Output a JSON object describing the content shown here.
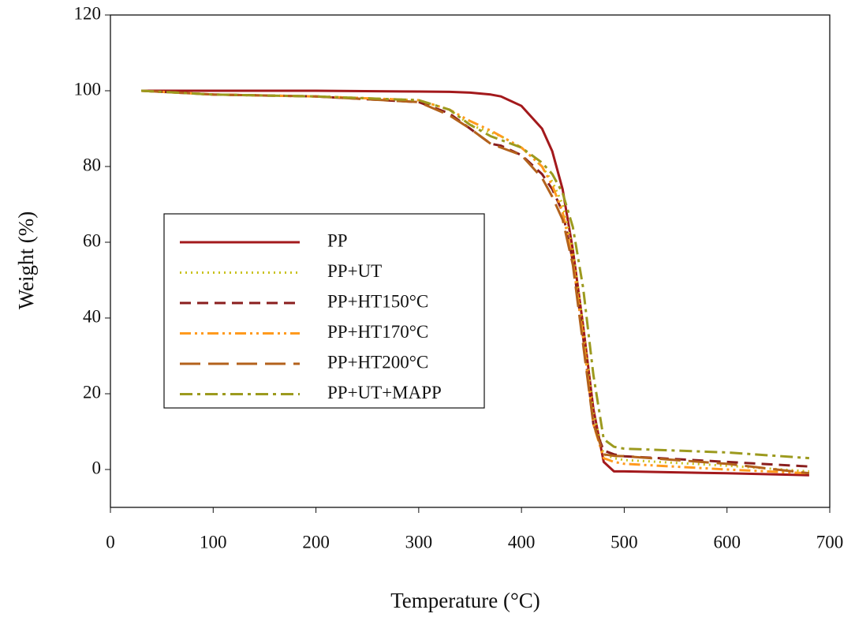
{
  "chart_data": {
    "type": "line",
    "xlabel": "Temperature (°C)",
    "ylabel": "Weight (%)",
    "x": [
      30,
      100,
      200,
      300,
      330,
      350,
      370,
      380,
      400,
      420,
      430,
      440,
      450,
      460,
      470,
      480,
      490,
      500,
      600,
      680
    ],
    "series": [
      {
        "name": "PP",
        "color": "#a3191c",
        "dash": "solid",
        "values": [
          100,
          100,
          100,
          99.8,
          99.7,
          99.5,
          99,
          98.5,
          96,
          90,
          84,
          74,
          58,
          38,
          16,
          2,
          -0.5,
          -0.5,
          -1,
          -1.5
        ]
      },
      {
        "name": "PP+UT",
        "color": "#c9c21e",
        "dash": "dotted",
        "values": [
          100,
          99,
          98.5,
          97.5,
          95,
          91,
          89,
          88,
          85,
          80,
          76,
          70,
          58,
          38,
          15,
          4,
          3,
          2.5,
          1,
          -0.5
        ]
      },
      {
        "name": "PP+HT150°C",
        "color": "#8a1e1e",
        "dash": "dashed",
        "values": [
          100,
          99,
          98.5,
          97,
          94,
          90,
          86,
          85.5,
          83,
          78,
          74,
          68,
          55,
          35,
          12,
          5,
          4,
          3.5,
          2,
          0.8
        ]
      },
      {
        "name": "PP+HT170°C",
        "color": "#ff9a1e",
        "dash": "dash-dot-dot",
        "values": [
          100,
          99,
          98.5,
          97.5,
          95,
          92,
          89.5,
          88,
          85,
          80,
          75,
          68,
          55,
          35,
          12,
          3,
          2,
          1.5,
          0,
          -1
        ]
      },
      {
        "name": "PP+HT200°C",
        "color": "#b3621c",
        "dash": "long-dash",
        "values": [
          100,
          99,
          98.5,
          97,
          93.5,
          90,
          86,
          85,
          83,
          77,
          72,
          66,
          54,
          33,
          12,
          4,
          3.6,
          3.5,
          1.5,
          -1
        ]
      },
      {
        "name": "PP+UT+MAPP",
        "color": "#9c9a1e",
        "dash": "dash-dot",
        "values": [
          100,
          99,
          98.5,
          97.5,
          95,
          91,
          88,
          87,
          85,
          81,
          78,
          73,
          64,
          48,
          25,
          8,
          6,
          5.5,
          4.5,
          3
        ]
      }
    ],
    "xlim": [
      0,
      700
    ],
    "xticks": [
      0,
      100,
      200,
      300,
      400,
      500,
      600,
      700
    ],
    "ylim": [
      -10,
      120
    ],
    "yticks": [
      0,
      20,
      40,
      60,
      80,
      100,
      120
    ],
    "grid": false,
    "legend": "left"
  }
}
